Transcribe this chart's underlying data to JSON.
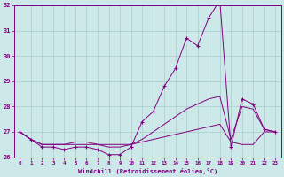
{
  "xlabel": "Windchill (Refroidissement éolien,°C)",
  "background_color": "#cce8e8",
  "line_color": "#800080",
  "grid_color": "#aacccc",
  "hours": [
    0,
    1,
    2,
    3,
    4,
    5,
    6,
    7,
    8,
    9,
    10,
    11,
    12,
    13,
    14,
    15,
    16,
    17,
    18,
    19,
    20,
    21,
    22,
    23
  ],
  "temp_main": [
    27.0,
    26.7,
    26.4,
    26.4,
    26.3,
    26.4,
    26.4,
    26.3,
    26.1,
    26.1,
    26.4,
    27.4,
    27.8,
    28.8,
    29.5,
    30.7,
    30.4,
    31.5,
    32.2,
    26.4,
    28.3,
    28.1,
    27.1,
    27.0
  ],
  "temp_mid": [
    27.0,
    26.7,
    26.5,
    26.5,
    26.5,
    26.5,
    26.5,
    26.5,
    26.4,
    26.4,
    26.5,
    26.7,
    27.0,
    27.3,
    27.6,
    27.9,
    28.1,
    28.3,
    28.4,
    26.7,
    28.0,
    27.9,
    27.1,
    27.0
  ],
  "temp_low": [
    27.0,
    26.7,
    26.5,
    26.5,
    26.5,
    26.6,
    26.6,
    26.5,
    26.5,
    26.5,
    26.5,
    26.6,
    26.7,
    26.8,
    26.9,
    27.0,
    27.1,
    27.2,
    27.3,
    26.6,
    26.5,
    26.5,
    27.0,
    27.0
  ],
  "ylim_min": 26.0,
  "ylim_max": 32.0,
  "yticks": [
    26,
    27,
    28,
    29,
    30,
    31,
    32
  ]
}
